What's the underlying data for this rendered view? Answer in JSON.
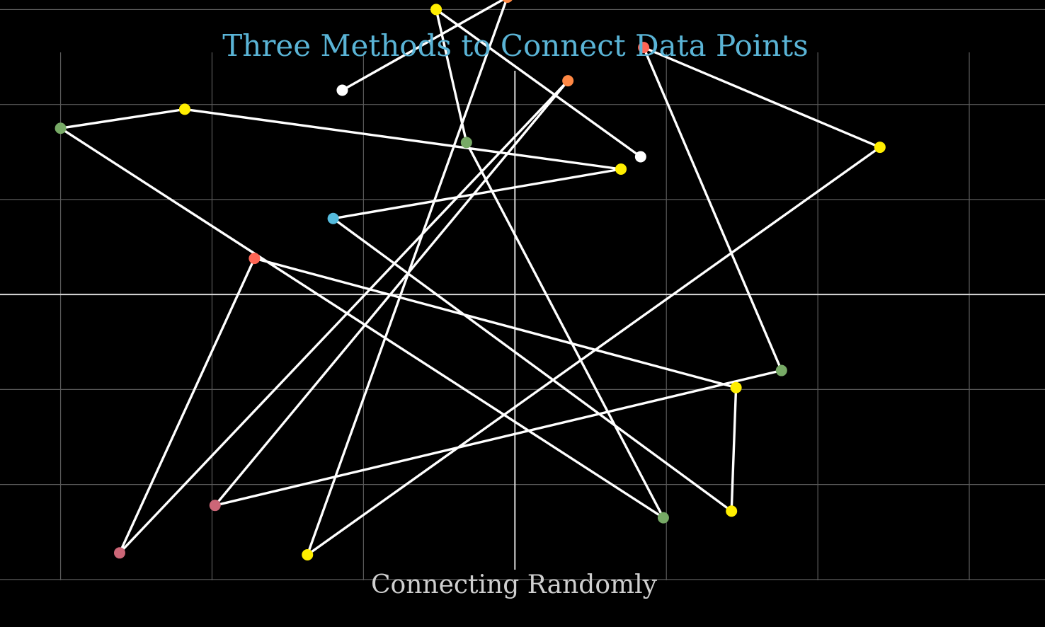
{
  "title": "Three Methods to Connect Data Points",
  "subtitle": "Connecting Randomly",
  "colors": {
    "background": "#000000",
    "title": "#5ab4d6",
    "subtitle": "#cfcfcf",
    "grid": "#5a5a5a",
    "axes": "#d8d8d8",
    "line": "#ffffff"
  },
  "chart_data": {
    "type": "line",
    "title": "Three Methods to Connect Data Points",
    "subtitle": "Connecting Randomly",
    "xlabel": "",
    "ylabel": "",
    "xlim": [
      -3.4,
      3.5
    ],
    "ylim": [
      -3.5,
      3.1
    ],
    "grid": true,
    "legend": "none",
    "x_gridlines": [
      -3,
      -2,
      -1,
      1,
      2,
      3
    ],
    "y_gridlines": [
      -3,
      -2,
      -1,
      1,
      2,
      3
    ],
    "connection_order": "random",
    "points": [
      {
        "x": 0.83,
        "y": 1.45,
        "color": "#ffffff"
      },
      {
        "x": -0.52,
        "y": 3.0,
        "color": "#ffee00"
      },
      {
        "x": -0.32,
        "y": 1.6,
        "color": "#77aa66"
      },
      {
        "x": 0.98,
        "y": -2.35,
        "color": "#77aa66"
      },
      {
        "x": -3.0,
        "y": 1.75,
        "color": "#77aa66"
      },
      {
        "x": -2.18,
        "y": 1.95,
        "color": "#ffee00"
      },
      {
        "x": 0.7,
        "y": 1.32,
        "color": "#ffee00"
      },
      {
        "x": -1.2,
        "y": 0.8,
        "color": "#55bbdd"
      },
      {
        "x": 1.43,
        "y": -2.28,
        "color": "#ffee00"
      },
      {
        "x": 1.46,
        "y": -0.98,
        "color": "#ffee00"
      },
      {
        "x": -1.72,
        "y": 0.38,
        "color": "#ff6655"
      },
      {
        "x": -2.61,
        "y": -2.72,
        "color": "#cc6677"
      },
      {
        "x": 0.35,
        "y": 2.25,
        "color": "#ff8844"
      },
      {
        "x": -1.98,
        "y": -2.22,
        "color": "#cc6677"
      },
      {
        "x": 1.76,
        "y": -0.8,
        "color": "#77aa66"
      },
      {
        "x": 0.85,
        "y": 2.6,
        "color": "#ff6655"
      },
      {
        "x": 2.41,
        "y": 1.55,
        "color": "#ffee00"
      },
      {
        "x": -1.37,
        "y": -2.74,
        "color": "#ffee00"
      },
      {
        "x": -0.05,
        "y": 3.13,
        "color": "#ff8844"
      },
      {
        "x": -1.14,
        "y": 2.15,
        "color": "#ffffff"
      }
    ]
  }
}
